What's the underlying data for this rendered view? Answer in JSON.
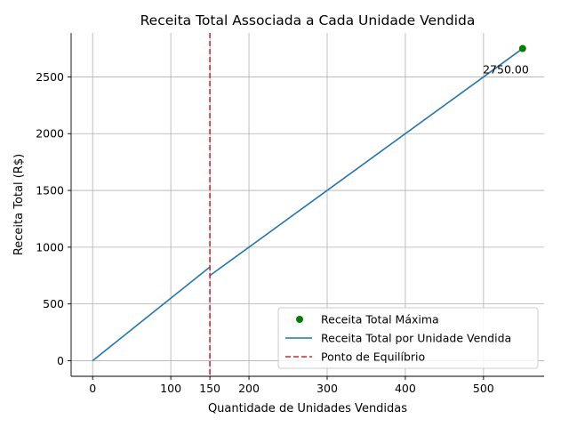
{
  "chart_data": {
    "type": "line",
    "title": "Receita Total Associada a Cada Unidade Vendida",
    "xlabel": "Quantidade de Unidades Vendidas",
    "ylabel": "Receita Total (R$)",
    "xlim": [
      -27.5,
      577.5
    ],
    "ylim": [
      -137.5,
      2887.5
    ],
    "xticks": [
      0,
      100,
      150,
      200,
      300,
      400,
      500
    ],
    "yticks": [
      0,
      500,
      1000,
      1500,
      2000,
      2500
    ],
    "grid": true,
    "legend_position": "lower-right",
    "series": [
      {
        "name": "Receita Total por Unidade Vendida",
        "kind": "line",
        "color": "#1f77b4",
        "segments": [
          [
            [
              0,
              0
            ],
            [
              150,
              825
            ]
          ],
          [
            [
              150,
              750
            ],
            [
              550,
              2750
            ]
          ]
        ]
      },
      {
        "name": "Receita Total Máxima",
        "kind": "scatter",
        "color": "#008000",
        "points": [
          [
            550,
            2750
          ]
        ]
      },
      {
        "name": "Ponto de Equilíbrio",
        "kind": "vline",
        "color": "#d62728",
        "x": 150
      }
    ],
    "legend_order": [
      "Receita Total Máxima",
      "Receita Total por Unidade Vendida",
      "Ponto de Equilíbrio"
    ],
    "annotations": [
      {
        "text": "2750.00",
        "x": 550,
        "y": 2750
      }
    ]
  }
}
